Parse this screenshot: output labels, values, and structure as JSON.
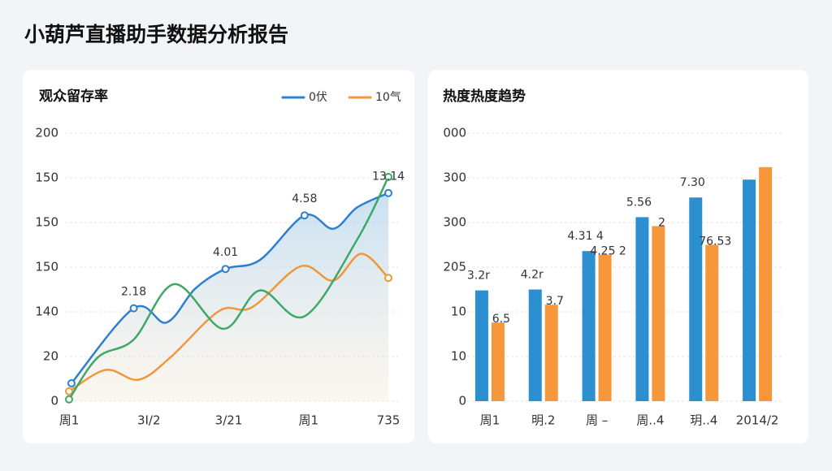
{
  "title": "小葫芦直播助手数据分析报告",
  "chart_data": [
    {
      "type": "line",
      "title": "观众留存率",
      "grid": true,
      "legend": "top-right",
      "xlim": [
        0,
        4
      ],
      "xticks": [
        {
          "value": 0,
          "label": "周1"
        },
        {
          "value": 1,
          "label": "3I/2"
        },
        {
          "value": 2,
          "label": "3/21"
        },
        {
          "value": 3,
          "label": "周1"
        },
        {
          "value": 4,
          "label": "735"
        }
      ],
      "ylim": [
        0,
        300
      ],
      "yticks": [
        0,
        {
          "value": 50,
          "label": "20"
        },
        {
          "value": 100,
          "label": "140"
        },
        {
          "value": 150,
          "label": "150"
        },
        {
          "value": 200,
          "label": "150"
        },
        {
          "value": 250,
          "label": "150"
        },
        {
          "value": 300,
          "label": "200"
        }
      ],
      "series": [
        {
          "name": "0伏",
          "color": "#2f7fd0",
          "area": true,
          "x": [
            0.03,
            0.81,
            1.22,
            1.58,
            1.96,
            2.39,
            2.95,
            3.31,
            3.61,
            4
          ],
          "values": [
            20,
            104,
            88,
            126,
            148,
            158,
            208,
            193,
            217,
            233
          ]
        },
        {
          "name": "10气",
          "color": "#f0973a",
          "x": [
            0,
            0.46,
            0.87,
            1.27,
            1.88,
            2.29,
            2.9,
            3.31,
            3.66,
            4
          ],
          "values": [
            11,
            35,
            24,
            49,
            101,
            105,
            151,
            135,
            165,
            138
          ]
        },
        {
          "color": "#3fa866",
          "x": [
            0,
            0.36,
            0.81,
            1.32,
            1.93,
            2.39,
            2.95,
            3.61,
            4
          ],
          "values": [
            2,
            49,
            69,
            131,
            81,
            124,
            95,
            181,
            251
          ]
        }
      ],
      "annotations": [
        "2.18",
        "4.01",
        "4.58",
        "13.14"
      ]
    },
    {
      "type": "bar",
      "title": "热度热度趋势",
      "grid": true,
      "categories": [
        "周1",
        "明.2",
        "周 –",
        "周..4",
        "玥..4",
        "2014/2"
      ],
      "ylim": [
        0,
        300
      ],
      "yticks": [
        0,
        {
          "value": 50,
          "label": "10"
        },
        {
          "value": 100,
          "label": "10"
        },
        {
          "value": 150,
          "label": "205"
        },
        {
          "value": 200,
          "label": "300"
        },
        {
          "value": 250,
          "label": "300"
        },
        {
          "value": 300,
          "label": "000"
        }
      ],
      "series": [
        {
          "color": "#2b8fd0",
          "values": [
            124,
            125,
            168,
            206,
            228,
            248
          ]
        },
        {
          "color": "#f5973a",
          "values": [
            88,
            108,
            164,
            196,
            175,
            262
          ]
        }
      ],
      "annotations": [
        "3.2r",
        "6.5",
        "4.2r",
        "3.7",
        "4.31 4",
        "4.25 2",
        "5.56",
        "2",
        "7.30",
        "76.53"
      ]
    }
  ]
}
